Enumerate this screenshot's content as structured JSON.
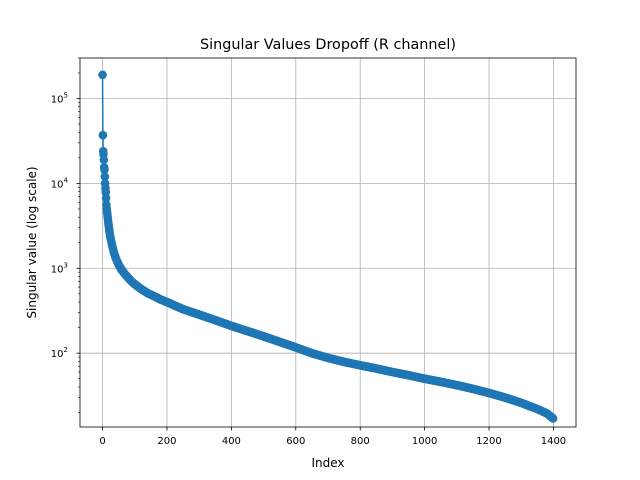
{
  "chart_data": {
    "type": "line",
    "title": "Singular Values Dropoff (R channel)",
    "xlabel": "Index",
    "ylabel": "Singular value (log scale)",
    "yscale": "log",
    "xlim": [
      -70,
      1470
    ],
    "ylim": [
      13.5,
      300000
    ],
    "grid": true,
    "x_ticks": [
      0,
      200,
      400,
      600,
      800,
      1000,
      1200,
      1400
    ],
    "y_ticks": [
      {
        "value": 100,
        "base": "10",
        "exponent": "2"
      },
      {
        "value": 1000,
        "base": "10",
        "exponent": "3"
      },
      {
        "value": 10000,
        "base": "10",
        "exponent": "4"
      },
      {
        "value": 100000,
        "base": "10",
        "exponent": "5"
      }
    ],
    "series": [
      {
        "name": "Singular values",
        "color": "#1f77b4",
        "marker": "circle",
        "points": [
          [
            0,
            190000
          ],
          [
            1,
            37000
          ],
          [
            2,
            24000
          ],
          [
            3,
            22000
          ],
          [
            4,
            19000
          ],
          [
            5,
            15500
          ],
          [
            6,
            14500
          ],
          [
            7,
            12000
          ],
          [
            8,
            10000
          ],
          [
            9,
            8800
          ],
          [
            10,
            7900
          ],
          [
            11,
            6700
          ],
          [
            12,
            5600
          ],
          [
            13,
            5000
          ],
          [
            14,
            4600
          ],
          [
            15,
            4300
          ],
          [
            16,
            4000
          ],
          [
            17,
            3700
          ],
          [
            18,
            3400
          ],
          [
            20,
            3000
          ],
          [
            22,
            2600
          ],
          [
            25,
            2250
          ],
          [
            30,
            1850
          ],
          [
            35,
            1550
          ],
          [
            40,
            1350
          ],
          [
            50,
            1100
          ],
          [
            60,
            950
          ],
          [
            70,
            850
          ],
          [
            80,
            770
          ],
          [
            90,
            700
          ],
          [
            100,
            650
          ],
          [
            120,
            570
          ],
          [
            140,
            510
          ],
          [
            160,
            470
          ],
          [
            180,
            430
          ],
          [
            200,
            400
          ],
          [
            250,
            330
          ],
          [
            300,
            285
          ],
          [
            350,
            245
          ],
          [
            400,
            210
          ],
          [
            450,
            182
          ],
          [
            500,
            158
          ],
          [
            550,
            136
          ],
          [
            600,
            117
          ],
          [
            650,
            100
          ],
          [
            700,
            88
          ],
          [
            750,
            79
          ],
          [
            800,
            72
          ],
          [
            850,
            66
          ],
          [
            900,
            60
          ],
          [
            950,
            55
          ],
          [
            1000,
            50
          ],
          [
            1050,
            46
          ],
          [
            1100,
            42
          ],
          [
            1150,
            38
          ],
          [
            1200,
            34
          ],
          [
            1250,
            30
          ],
          [
            1300,
            26
          ],
          [
            1350,
            22
          ],
          [
            1380,
            19.5
          ],
          [
            1399,
            17
          ]
        ]
      }
    ]
  }
}
